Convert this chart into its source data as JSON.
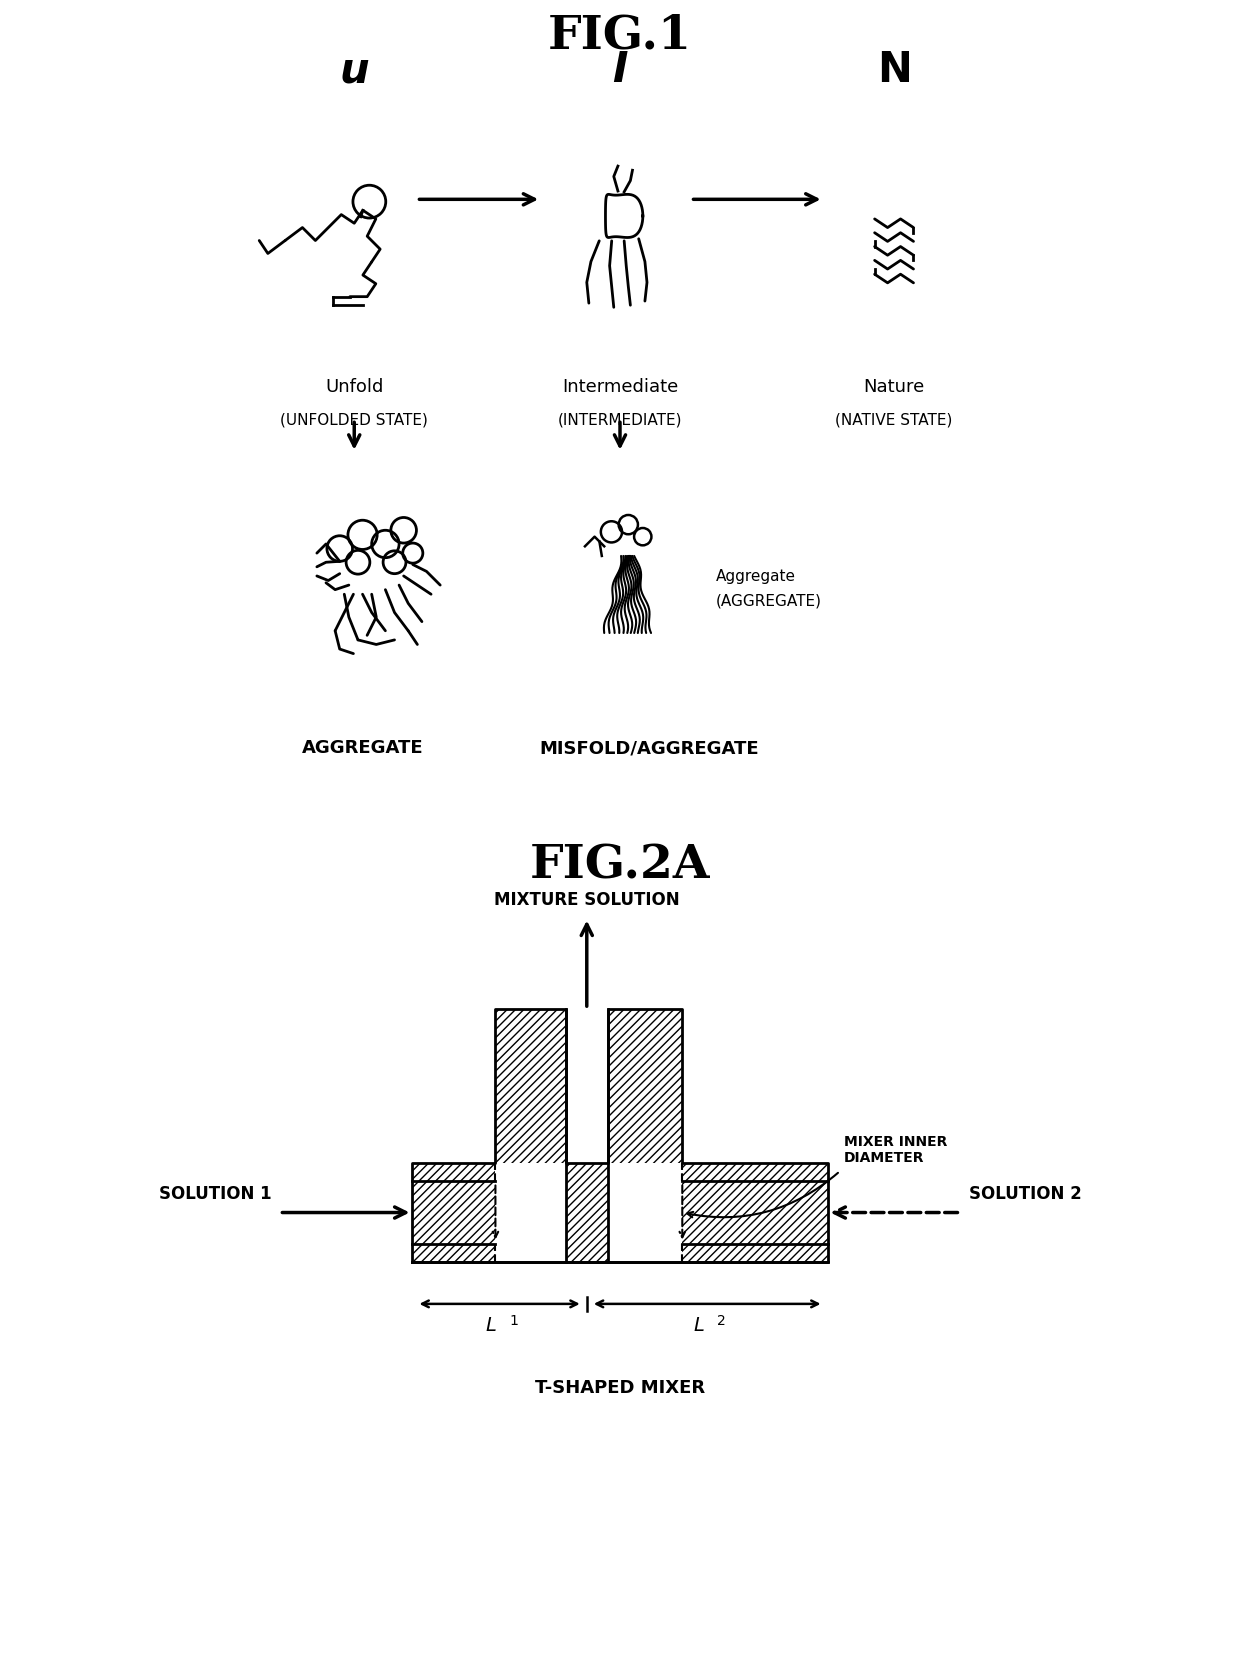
{
  "fig1_title": "FIG.1",
  "fig2_title": "FIG.2A",
  "bg_color": "#ffffff",
  "line_color": "#000000",
  "fig1_labels": {
    "u": "u",
    "i": "I",
    "n": "N",
    "unfold": "Unfold",
    "unfold_state": "(UNFOLDED STATE)",
    "intermediate": "Intermediate",
    "intermediate_state": "(INTERMEDIATE)",
    "nature": "Nature",
    "native_state": "(NATIVE STATE)",
    "aggregate": "AGGREGATE",
    "misfold": "MISFOLD/AGGREGATE",
    "agg_label": "Aggregate",
    "agg_state": "(AGGREGATE)"
  },
  "fig2_labels": {
    "mixture": "MIXTURE SOLUTION",
    "solution1": "SOLUTION 1",
    "solution2": "SOLUTION 2",
    "mixer_inner": "MIXER INNER\nDIAMETER",
    "t_shaped": "T-SHAPED MIXER"
  }
}
